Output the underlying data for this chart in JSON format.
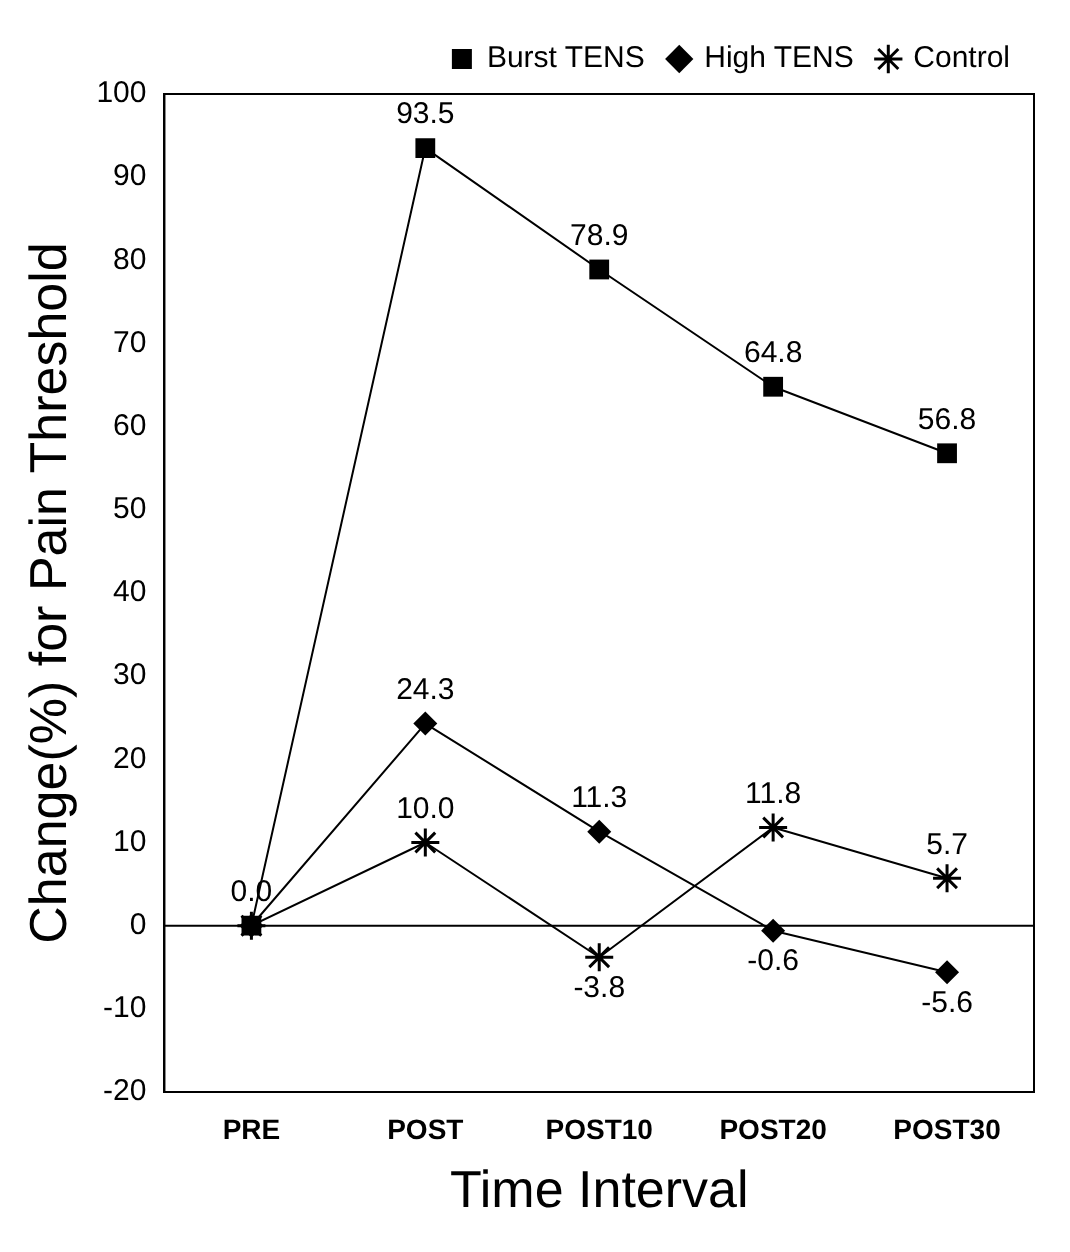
{
  "chart_data": {
    "type": "line",
    "xlabel": "Time Interval",
    "ylabel": "Change(%) for Pain Threshold",
    "categories": [
      "PRE",
      "POST",
      "POST10",
      "POST20",
      "POST30"
    ],
    "series": [
      {
        "name": "Burst TENS",
        "color": "#000000",
        "marker": "square",
        "values": [
          0.0,
          93.5,
          78.9,
          64.8,
          56.8
        ],
        "value_labels": [
          null,
          "93.5",
          "78.9",
          "64.8",
          "56.8"
        ]
      },
      {
        "name": "High TENS",
        "color": "#000000",
        "marker": "diamond",
        "values": [
          0.0,
          24.3,
          11.3,
          -0.6,
          -5.6
        ],
        "value_labels": [
          "0.0",
          "24.3",
          "11.3",
          "-0.6",
          "-5.6"
        ]
      },
      {
        "name": "Control",
        "color": "#000000",
        "marker": "cross",
        "values": [
          0.0,
          10.0,
          -3.8,
          11.8,
          5.7
        ],
        "value_labels": [
          null,
          "10.0",
          "-3.8",
          "11.8",
          "5.7"
        ]
      }
    ],
    "ylim": [
      -20,
      100
    ],
    "yticks": [
      -20,
      -10,
      0,
      10,
      20,
      30,
      40,
      50,
      60,
      70,
      80,
      90,
      100
    ],
    "ref_lines": [
      {
        "axis": "y",
        "value": 0,
        "color": "#000000"
      }
    ],
    "grid": false,
    "legend": "top right",
    "line_style": "solid"
  }
}
